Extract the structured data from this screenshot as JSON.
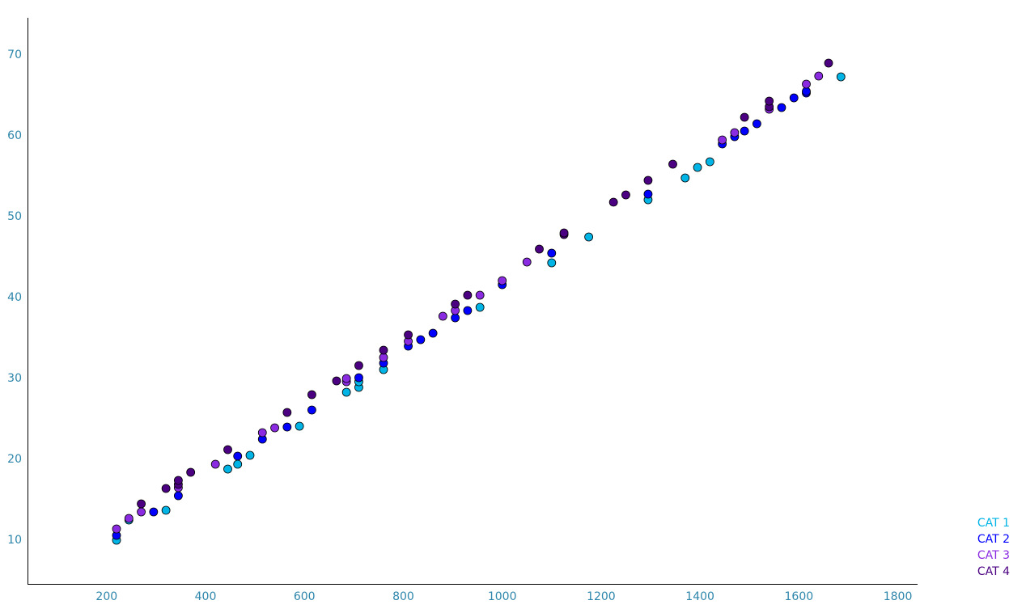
{
  "chart_data": {
    "type": "scatter",
    "title": "",
    "xlabel": "",
    "ylabel": "",
    "xlim": [
      40,
      1840
    ],
    "ylim": [
      4.5,
      74.5
    ],
    "x_ticks": [
      200,
      400,
      600,
      800,
      1000,
      1200,
      1400,
      1600,
      1800
    ],
    "y_ticks": [
      10,
      20,
      30,
      40,
      50,
      60,
      70
    ],
    "tick_color": "#2e86ab",
    "grid": false,
    "legend_position": "bottom-right",
    "marker_edge_color": "#000000",
    "series": [
      {
        "name": "CAT 1",
        "color": "#00b4e6",
        "points": [
          [
            220,
            9.9
          ],
          [
            245,
            12.4
          ],
          [
            320,
            13.6
          ],
          [
            445,
            18.7
          ],
          [
            465,
            19.3
          ],
          [
            490,
            20.4
          ],
          [
            590,
            24.0
          ],
          [
            685,
            28.2
          ],
          [
            710,
            28.8
          ],
          [
            710,
            29.5
          ],
          [
            760,
            31.0
          ],
          [
            955,
            38.7
          ],
          [
            1100,
            44.2
          ],
          [
            1175,
            47.4
          ],
          [
            1295,
            52.0
          ],
          [
            1370,
            54.7
          ],
          [
            1395,
            56.0
          ],
          [
            1420,
            56.7
          ],
          [
            1685,
            67.2
          ]
        ]
      },
      {
        "name": "CAT 2",
        "color": "#0000ff",
        "points": [
          [
            220,
            10.5
          ],
          [
            295,
            13.4
          ],
          [
            345,
            15.4
          ],
          [
            465,
            20.3
          ],
          [
            515,
            22.4
          ],
          [
            565,
            23.9
          ],
          [
            615,
            26.0
          ],
          [
            710,
            30.0
          ],
          [
            760,
            31.8
          ],
          [
            810,
            33.9
          ],
          [
            835,
            34.7
          ],
          [
            860,
            35.5
          ],
          [
            905,
            37.4
          ],
          [
            930,
            38.3
          ],
          [
            1000,
            41.5
          ],
          [
            1100,
            45.4
          ],
          [
            1295,
            52.7
          ],
          [
            1445,
            58.9
          ],
          [
            1470,
            59.8
          ],
          [
            1490,
            60.5
          ],
          [
            1515,
            61.4
          ],
          [
            1565,
            63.4
          ],
          [
            1590,
            64.6
          ],
          [
            1615,
            65.2
          ],
          [
            1615,
            65.4
          ]
        ]
      },
      {
        "name": "CAT 3",
        "color": "#8a2be2",
        "points": [
          [
            220,
            11.3
          ],
          [
            245,
            12.6
          ],
          [
            270,
            13.4
          ],
          [
            345,
            16.4
          ],
          [
            420,
            19.3
          ],
          [
            515,
            23.2
          ],
          [
            540,
            23.8
          ],
          [
            685,
            29.5
          ],
          [
            685,
            29.9
          ],
          [
            760,
            32.5
          ],
          [
            810,
            34.5
          ],
          [
            880,
            37.6
          ],
          [
            905,
            38.3
          ],
          [
            955,
            40.2
          ],
          [
            1000,
            42.0
          ],
          [
            1050,
            44.3
          ],
          [
            1445,
            59.4
          ],
          [
            1470,
            60.3
          ],
          [
            1540,
            63.2
          ],
          [
            1615,
            66.3
          ],
          [
            1640,
            67.3
          ]
        ]
      },
      {
        "name": "CAT 4",
        "color": "#4b0082",
        "points": [
          [
            270,
            14.4
          ],
          [
            320,
            16.3
          ],
          [
            345,
            16.8
          ],
          [
            345,
            17.3
          ],
          [
            370,
            18.3
          ],
          [
            445,
            21.1
          ],
          [
            565,
            25.7
          ],
          [
            615,
            27.9
          ],
          [
            665,
            29.6
          ],
          [
            710,
            31.5
          ],
          [
            760,
            33.4
          ],
          [
            810,
            35.3
          ],
          [
            905,
            39.1
          ],
          [
            930,
            40.2
          ],
          [
            1075,
            45.9
          ],
          [
            1125,
            47.7
          ],
          [
            1125,
            47.9
          ],
          [
            1225,
            51.7
          ],
          [
            1250,
            52.6
          ],
          [
            1295,
            54.4
          ],
          [
            1345,
            56.4
          ],
          [
            1490,
            62.2
          ],
          [
            1540,
            63.5
          ],
          [
            1540,
            64.2
          ],
          [
            1660,
            68.9
          ]
        ]
      }
    ]
  }
}
